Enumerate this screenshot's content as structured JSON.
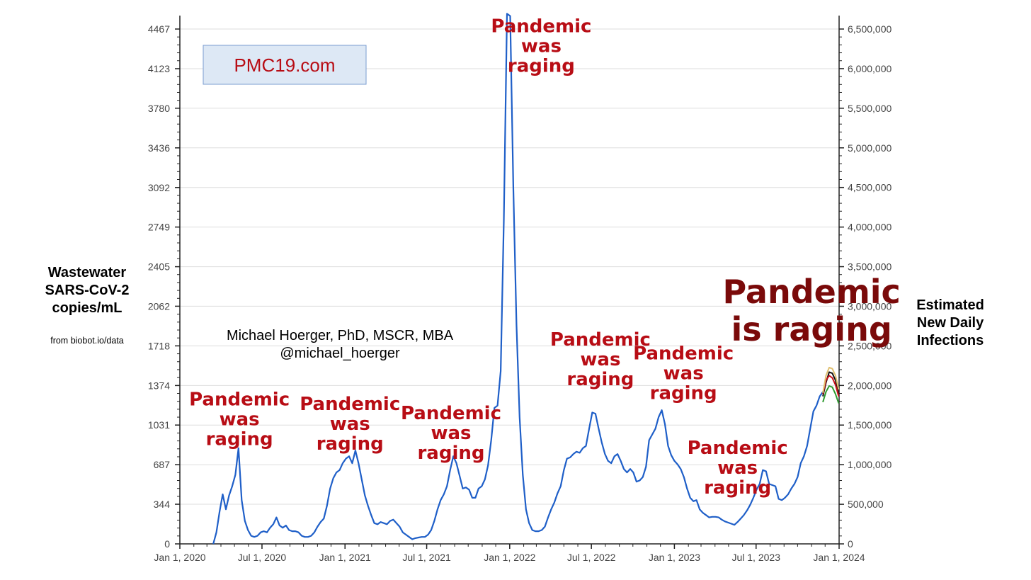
{
  "chart_data": {
    "type": "line",
    "brand": "PMC19.com",
    "credit": [
      "Michael Hoerger, PhD, MSCR, MBA",
      "@michael_hoerger"
    ],
    "source_note": "from biobot.io/data",
    "left_axis": {
      "label": [
        "Wastewater",
        "SARS-CoV-2",
        "copies/mL"
      ],
      "ticks": [
        "0",
        "344",
        "687",
        "1031",
        "1374",
        "1718",
        "2062",
        "2405",
        "2749",
        "3092",
        "3436",
        "3780",
        "4123",
        "4467"
      ],
      "range": [
        0,
        4467
      ]
    },
    "right_axis": {
      "label": [
        "Estimated",
        "New Daily",
        "Infections"
      ],
      "ticks": [
        "0",
        "500,000",
        "1,000,000",
        "1,500,000",
        "2,000,000",
        "2,500,000",
        "3,000,000",
        "3,500,000",
        "4,000,000",
        "4,500,000",
        "5,000,000",
        "5,500,000",
        "6,000,000",
        "6,500,000"
      ],
      "range": [
        0,
        6500000
      ]
    },
    "x_ticks": [
      "Jan 1, 2020",
      "Jul 1, 2020",
      "Jan 1, 2021",
      "Jul 1, 2021",
      "Jan 1, 2022",
      "Jul 1, 2022",
      "Jan 1, 2023",
      "Jul 1, 2023",
      "Jan 1, 2024"
    ],
    "grid": true,
    "series": [
      {
        "color": "#1f5fc8",
        "points": [
          [
            "2020-03-15",
            0
          ],
          [
            "2020-03-22",
            100
          ],
          [
            "2020-03-29",
            280
          ],
          [
            "2020-04-05",
            430
          ],
          [
            "2020-04-12",
            300
          ],
          [
            "2020-04-19",
            420
          ],
          [
            "2020-04-26",
            500
          ],
          [
            "2020-05-03",
            600
          ],
          [
            "2020-05-10",
            830
          ],
          [
            "2020-05-17",
            380
          ],
          [
            "2020-05-24",
            200
          ],
          [
            "2020-05-31",
            120
          ],
          [
            "2020-06-07",
            70
          ],
          [
            "2020-06-14",
            60
          ],
          [
            "2020-06-21",
            70
          ],
          [
            "2020-06-28",
            100
          ],
          [
            "2020-07-05",
            110
          ],
          [
            "2020-07-12",
            100
          ],
          [
            "2020-07-19",
            140
          ],
          [
            "2020-07-26",
            170
          ],
          [
            "2020-08-02",
            230
          ],
          [
            "2020-08-09",
            160
          ],
          [
            "2020-08-16",
            140
          ],
          [
            "2020-08-23",
            160
          ],
          [
            "2020-08-30",
            120
          ],
          [
            "2020-09-06",
            110
          ],
          [
            "2020-09-13",
            110
          ],
          [
            "2020-09-20",
            100
          ],
          [
            "2020-09-27",
            70
          ],
          [
            "2020-10-04",
            60
          ],
          [
            "2020-10-11",
            60
          ],
          [
            "2020-10-18",
            70
          ],
          [
            "2020-10-25",
            100
          ],
          [
            "2020-11-01",
            150
          ],
          [
            "2020-11-08",
            190
          ],
          [
            "2020-11-15",
            220
          ],
          [
            "2020-11-22",
            330
          ],
          [
            "2020-11-29",
            480
          ],
          [
            "2020-12-06",
            570
          ],
          [
            "2020-12-13",
            620
          ],
          [
            "2020-12-20",
            640
          ],
          [
            "2020-12-27",
            700
          ],
          [
            "2021-01-03",
            740
          ],
          [
            "2021-01-10",
            760
          ],
          [
            "2021-01-17",
            700
          ],
          [
            "2021-01-24",
            810
          ],
          [
            "2021-01-31",
            700
          ],
          [
            "2021-02-07",
            560
          ],
          [
            "2021-02-14",
            420
          ],
          [
            "2021-02-21",
            330
          ],
          [
            "2021-02-28",
            250
          ],
          [
            "2021-03-07",
            180
          ],
          [
            "2021-03-14",
            170
          ],
          [
            "2021-03-21",
            190
          ],
          [
            "2021-03-28",
            180
          ],
          [
            "2021-04-04",
            170
          ],
          [
            "2021-04-11",
            200
          ],
          [
            "2021-04-18",
            210
          ],
          [
            "2021-04-25",
            180
          ],
          [
            "2021-05-02",
            150
          ],
          [
            "2021-05-09",
            100
          ],
          [
            "2021-05-16",
            80
          ],
          [
            "2021-05-23",
            60
          ],
          [
            "2021-05-30",
            40
          ],
          [
            "2021-06-06",
            50
          ],
          [
            "2021-06-13",
            55
          ],
          [
            "2021-06-20",
            60
          ],
          [
            "2021-06-27",
            60
          ],
          [
            "2021-07-04",
            80
          ],
          [
            "2021-07-11",
            120
          ],
          [
            "2021-07-18",
            200
          ],
          [
            "2021-07-25",
            300
          ],
          [
            "2021-08-01",
            380
          ],
          [
            "2021-08-08",
            430
          ],
          [
            "2021-08-15",
            500
          ],
          [
            "2021-08-22",
            640
          ],
          [
            "2021-08-29",
            760
          ],
          [
            "2021-09-05",
            700
          ],
          [
            "2021-09-12",
            590
          ],
          [
            "2021-09-19",
            480
          ],
          [
            "2021-09-26",
            490
          ],
          [
            "2021-10-03",
            470
          ],
          [
            "2021-10-10",
            400
          ],
          [
            "2021-10-17",
            400
          ],
          [
            "2021-10-24",
            480
          ],
          [
            "2021-10-31",
            500
          ],
          [
            "2021-11-07",
            560
          ],
          [
            "2021-11-14",
            680
          ],
          [
            "2021-11-21",
            900
          ],
          [
            "2021-11-28",
            1180
          ],
          [
            "2021-12-05",
            1200
          ],
          [
            "2021-12-12",
            1500
          ],
          [
            "2021-12-19",
            2800
          ],
          [
            "2021-12-26",
            4600
          ],
          [
            "2022-01-02",
            4580
          ],
          [
            "2022-01-09",
            3100
          ],
          [
            "2022-01-16",
            1900
          ],
          [
            "2022-01-23",
            1100
          ],
          [
            "2022-01-30",
            600
          ],
          [
            "2022-02-06",
            300
          ],
          [
            "2022-02-13",
            180
          ],
          [
            "2022-02-20",
            120
          ],
          [
            "2022-02-27",
            110
          ],
          [
            "2022-03-06",
            110
          ],
          [
            "2022-03-13",
            120
          ],
          [
            "2022-03-20",
            150
          ],
          [
            "2022-03-27",
            230
          ],
          [
            "2022-04-03",
            300
          ],
          [
            "2022-04-10",
            360
          ],
          [
            "2022-04-17",
            440
          ],
          [
            "2022-04-24",
            500
          ],
          [
            "2022-05-01",
            640
          ],
          [
            "2022-05-08",
            740
          ],
          [
            "2022-05-15",
            750
          ],
          [
            "2022-05-22",
            780
          ],
          [
            "2022-05-29",
            800
          ],
          [
            "2022-06-05",
            790
          ],
          [
            "2022-06-12",
            830
          ],
          [
            "2022-06-19",
            850
          ],
          [
            "2022-06-26",
            1000
          ],
          [
            "2022-07-03",
            1140
          ],
          [
            "2022-07-10",
            1130
          ],
          [
            "2022-07-17",
            1000
          ],
          [
            "2022-07-24",
            880
          ],
          [
            "2022-07-31",
            780
          ],
          [
            "2022-08-07",
            720
          ],
          [
            "2022-08-14",
            700
          ],
          [
            "2022-08-21",
            760
          ],
          [
            "2022-08-28",
            780
          ],
          [
            "2022-09-04",
            720
          ],
          [
            "2022-09-11",
            650
          ],
          [
            "2022-09-18",
            620
          ],
          [
            "2022-09-25",
            650
          ],
          [
            "2022-10-02",
            620
          ],
          [
            "2022-10-09",
            540
          ],
          [
            "2022-10-16",
            550
          ],
          [
            "2022-10-23",
            580
          ],
          [
            "2022-10-30",
            670
          ],
          [
            "2022-11-06",
            900
          ],
          [
            "2022-11-13",
            950
          ],
          [
            "2022-11-20",
            1000
          ],
          [
            "2022-11-27",
            1100
          ],
          [
            "2022-12-04",
            1160
          ],
          [
            "2022-12-11",
            1040
          ],
          [
            "2022-12-18",
            850
          ],
          [
            "2022-12-25",
            770
          ],
          [
            "2023-01-01",
            720
          ],
          [
            "2023-01-08",
            690
          ],
          [
            "2023-01-15",
            650
          ],
          [
            "2023-01-22",
            580
          ],
          [
            "2023-01-29",
            480
          ],
          [
            "2023-02-05",
            400
          ],
          [
            "2023-02-12",
            370
          ],
          [
            "2023-02-19",
            380
          ],
          [
            "2023-02-26",
            300
          ],
          [
            "2023-03-05",
            270
          ],
          [
            "2023-03-12",
            250
          ],
          [
            "2023-03-19",
            230
          ],
          [
            "2023-03-26",
            235
          ],
          [
            "2023-04-02",
            235
          ],
          [
            "2023-04-09",
            230
          ],
          [
            "2023-04-16",
            210
          ],
          [
            "2023-04-23",
            195
          ],
          [
            "2023-04-30",
            185
          ],
          [
            "2023-05-07",
            175
          ],
          [
            "2023-05-14",
            165
          ],
          [
            "2023-05-21",
            190
          ],
          [
            "2023-05-28",
            220
          ],
          [
            "2023-06-04",
            250
          ],
          [
            "2023-06-11",
            290
          ],
          [
            "2023-06-18",
            340
          ],
          [
            "2023-06-25",
            400
          ],
          [
            "2023-07-02",
            470
          ],
          [
            "2023-07-09",
            520
          ],
          [
            "2023-07-16",
            640
          ],
          [
            "2023-07-23",
            630
          ],
          [
            "2023-07-30",
            520
          ],
          [
            "2023-08-06",
            510
          ],
          [
            "2023-08-13",
            500
          ],
          [
            "2023-08-20",
            390
          ],
          [
            "2023-08-27",
            380
          ],
          [
            "2023-09-03",
            400
          ],
          [
            "2023-09-10",
            430
          ],
          [
            "2023-09-17",
            480
          ],
          [
            "2023-09-24",
            520
          ],
          [
            "2023-10-01",
            580
          ],
          [
            "2023-10-08",
            700
          ],
          [
            "2023-10-15",
            760
          ],
          [
            "2023-10-22",
            850
          ],
          [
            "2023-10-29",
            1000
          ],
          [
            "2023-11-05",
            1150
          ],
          [
            "2023-11-12",
            1200
          ],
          [
            "2023-11-19",
            1280
          ],
          [
            "2023-11-26",
            1320
          ]
        ]
      }
    ],
    "forecast": [
      {
        "color": "#2e9a2e",
        "points": [
          [
            "2023-11-26",
            1230
          ],
          [
            "2023-12-03",
            1320
          ],
          [
            "2023-12-10",
            1370
          ],
          [
            "2023-12-17",
            1360
          ],
          [
            "2023-12-24",
            1300
          ],
          [
            "2023-12-31",
            1220
          ]
        ]
      },
      {
        "color": "#111111",
        "points": [
          [
            "2023-11-26",
            1280
          ],
          [
            "2023-12-03",
            1400
          ],
          [
            "2023-12-10",
            1490
          ],
          [
            "2023-12-17",
            1480
          ],
          [
            "2023-12-24",
            1420
          ],
          [
            "2023-12-31",
            1300
          ]
        ]
      },
      {
        "color": "#c8101a",
        "points": [
          [
            "2023-11-26",
            1300
          ],
          [
            "2023-12-03",
            1420
          ],
          [
            "2023-12-10",
            1460
          ],
          [
            "2023-12-17",
            1440
          ],
          [
            "2023-12-24",
            1380
          ],
          [
            "2023-12-31",
            1280
          ]
        ]
      },
      {
        "color": "#e0c070",
        "points": [
          [
            "2023-11-26",
            1310
          ],
          [
            "2023-12-03",
            1460
          ],
          [
            "2023-12-10",
            1530
          ],
          [
            "2023-12-17",
            1520
          ],
          [
            "2023-12-24",
            1460
          ],
          [
            "2023-12-31",
            1340
          ]
        ]
      }
    ],
    "annotations": [
      {
        "date": "2020-05-12",
        "level": 1200,
        "lines": [
          "Pandemic",
          "was",
          "raging"
        ]
      },
      {
        "date": "2021-01-12",
        "level": 1160,
        "lines": [
          "Pandemic",
          "was",
          "raging"
        ]
      },
      {
        "date": "2021-08-24",
        "level": 1080,
        "lines": [
          "Pandemic",
          "was",
          "raging"
        ]
      },
      {
        "date": "2022-03-12",
        "level": 4440,
        "lines": [
          "Pandemic",
          "was",
          "raging"
        ]
      },
      {
        "date": "2022-07-21",
        "level": 1720,
        "lines": [
          "Pandemic",
          "was",
          "raging"
        ]
      },
      {
        "date": "2023-01-21",
        "level": 1600,
        "lines": [
          "Pandemic",
          "was",
          "raging"
        ]
      },
      {
        "date": "2023-05-21",
        "level": 780,
        "lines": [
          "Pandemic",
          "was",
          "raging"
        ]
      }
    ],
    "headline": {
      "date": "2023-11-01",
      "level": 2090,
      "lines": [
        "Pandemic",
        "is raging"
      ]
    }
  }
}
